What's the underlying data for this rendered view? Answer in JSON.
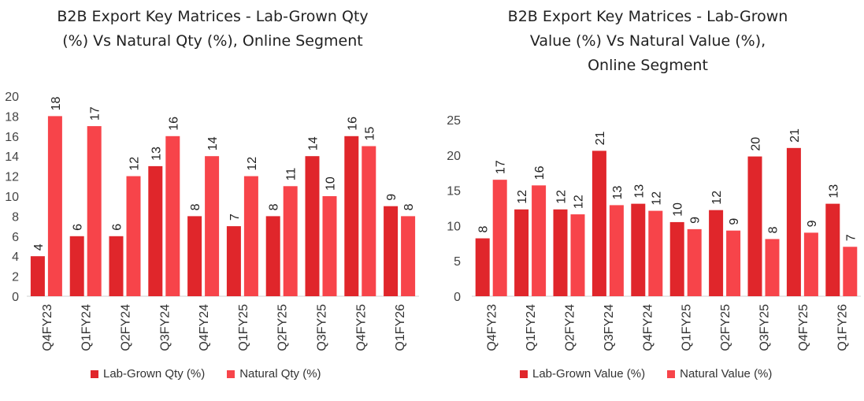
{
  "chart_data": [
    {
      "type": "bar",
      "title_lines": [
        "B2B Export Key Matrices - Lab-Grown Qty",
        "(%) Vs Natural Qty (%), Online Segment"
      ],
      "categories": [
        "Q4FY23",
        "Q1FY24",
        "Q2FY24",
        "Q3FY24",
        "Q4FY24",
        "Q1FY25",
        "Q2FY25",
        "Q3FY25",
        "Q4FY25",
        "Q1FY26"
      ],
      "series": [
        {
          "name": "Lab-Grown Qty (%)",
          "color": "#e0262b",
          "values": [
            4,
            6,
            6,
            13,
            8,
            7,
            8,
            14,
            16,
            9
          ]
        },
        {
          "name": "Natural Qty (%)",
          "color": "#f7444a",
          "values": [
            18,
            17,
            12,
            16,
            14,
            12,
            11,
            10,
            15,
            8
          ]
        }
      ],
      "y_ticks": [
        "0",
        "2",
        "4",
        "6",
        "8",
        "10",
        "12",
        "14",
        "16",
        "18",
        "20"
      ],
      "ylim": [
        0,
        20
      ],
      "xlabel": "",
      "ylabel": "",
      "grid": false,
      "legend": "bottom"
    },
    {
      "type": "bar",
      "title_lines": [
        "B2B Export Key Matrices - Lab-Grown",
        "Value (%) Vs Natural Value (%),",
        "Online Segment"
      ],
      "categories": [
        "Q4FY23",
        "Q1FY24",
        "Q2FY24",
        "Q3FY24",
        "Q4FY24",
        "Q1FY25",
        "Q2FY25",
        "Q3FY25",
        "Q4FY25",
        "Q1FY26"
      ],
      "series": [
        {
          "name": "Lab-Grown Value (%)",
          "color": "#e0262b",
          "values": [
            8.2,
            12.3,
            12.3,
            20.6,
            13.1,
            10.5,
            12.2,
            19.8,
            21,
            13.1
          ]
        },
        {
          "name": "Natural Value (%)",
          "color": "#f7444a",
          "values": [
            16.5,
            15.7,
            11.6,
            12.9,
            12.1,
            9.5,
            9.3,
            8.1,
            9,
            7
          ]
        }
      ],
      "data_labels": [
        [
          "8",
          "12",
          "12",
          "21",
          "13",
          "10",
          "12",
          "20",
          "21",
          "13"
        ],
        [
          "17",
          "16",
          "12",
          "13",
          "12",
          "9",
          "9",
          "8",
          "9",
          "7"
        ]
      ],
      "y_ticks": [
        "0",
        "5",
        "10",
        "15",
        "20",
        "25"
      ],
      "ylim": [
        0,
        25
      ],
      "xlabel": "",
      "ylabel": "",
      "grid": false,
      "legend": "bottom"
    }
  ]
}
